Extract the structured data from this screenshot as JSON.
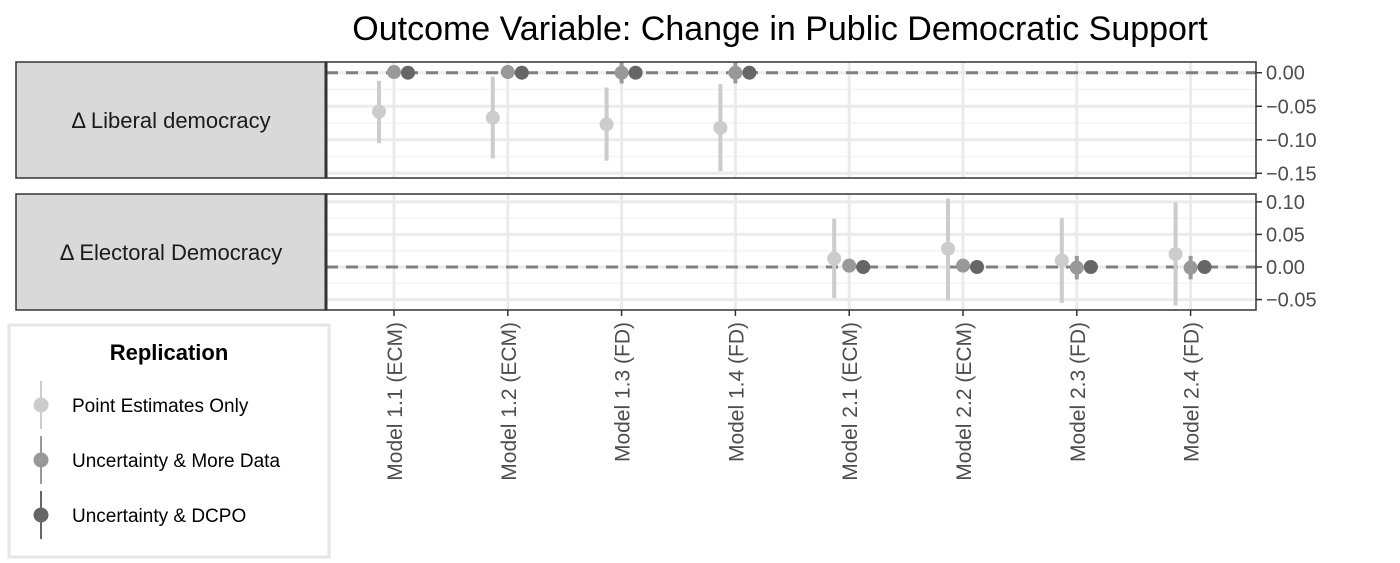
{
  "chart_data": {
    "type": "scatter",
    "title": "Outcome Variable: Change in Public Democratic Support",
    "categories": [
      "Model 1.1 (ECM)",
      "Model 1.2 (ECM)",
      "Model 1.3 (FD)",
      "Model 1.4 (FD)",
      "Model 2.1 (ECM)",
      "Model 2.2 (ECM)",
      "Model 2.3 (FD)",
      "Model 2.4 (FD)"
    ],
    "legend": {
      "title": "Replication",
      "placement": "bottom-left",
      "items": [
        {
          "name": "Point Estimates Only",
          "color": "#cccccc"
        },
        {
          "name": "Uncertainty & More Data",
          "color": "#999999"
        },
        {
          "name": "Uncertainty & DCPO",
          "color": "#666666"
        }
      ]
    },
    "colors": {
      "strip": "#d9d9d9",
      "grid_major": "#ebebeb",
      "grid_minor": "#f4f4f4",
      "zero_line": "#808080",
      "panel_border": "#333333"
    },
    "panels": [
      {
        "label": "Δ Liberal democracy",
        "ylim": [
          -0.157,
          0.016
        ],
        "yticks": [
          0.0,
          -0.05,
          -0.1,
          -0.15
        ],
        "ytick_labels": [
          "0.00",
          "−0.05",
          "−0.10",
          "−0.15"
        ],
        "zero_line": 0.0,
        "points": [
          {
            "model": 0,
            "series": 0,
            "y": -0.058,
            "lo": -0.105,
            "hi": -0.012
          },
          {
            "model": 0,
            "series": 1,
            "y": 0.001,
            "lo": -0.004,
            "hi": 0.006
          },
          {
            "model": 0,
            "series": 2,
            "y": 0.0,
            "lo": -0.002,
            "hi": 0.002
          },
          {
            "model": 1,
            "series": 0,
            "y": -0.067,
            "lo": -0.128,
            "hi": -0.006
          },
          {
            "model": 1,
            "series": 1,
            "y": 0.001,
            "lo": -0.004,
            "hi": 0.007
          },
          {
            "model": 1,
            "series": 2,
            "y": 0.0,
            "lo": -0.002,
            "hi": 0.002
          },
          {
            "model": 2,
            "series": 0,
            "y": -0.077,
            "lo": -0.131,
            "hi": -0.022
          },
          {
            "model": 2,
            "series": 1,
            "y": 0.0,
            "lo": -0.016,
            "hi": 0.015
          },
          {
            "model": 2,
            "series": 2,
            "y": 0.0,
            "lo": -0.002,
            "hi": 0.002
          },
          {
            "model": 3,
            "series": 0,
            "y": -0.082,
            "lo": -0.147,
            "hi": -0.017
          },
          {
            "model": 3,
            "series": 1,
            "y": 0.0,
            "lo": -0.016,
            "hi": 0.015
          },
          {
            "model": 3,
            "series": 2,
            "y": 0.0,
            "lo": -0.002,
            "hi": 0.002
          }
        ]
      },
      {
        "label": "Δ Electoral Democracy",
        "ylim": [
          -0.066,
          0.112
        ],
        "yticks": [
          0.1,
          0.05,
          0.0,
          -0.05
        ],
        "ytick_labels": [
          "0.10",
          "0.05",
          "0.00",
          "−0.05"
        ],
        "zero_line": 0.0,
        "points": [
          {
            "model": 4,
            "series": 0,
            "y": 0.013,
            "lo": -0.048,
            "hi": 0.074
          },
          {
            "model": 4,
            "series": 1,
            "y": 0.002,
            "lo": -0.005,
            "hi": 0.009
          },
          {
            "model": 4,
            "series": 2,
            "y": 0.0,
            "lo": -0.002,
            "hi": 0.002
          },
          {
            "model": 5,
            "series": 0,
            "y": 0.028,
            "lo": -0.051,
            "hi": 0.105
          },
          {
            "model": 5,
            "series": 1,
            "y": 0.002,
            "lo": -0.006,
            "hi": 0.01
          },
          {
            "model": 5,
            "series": 2,
            "y": 0.0,
            "lo": -0.002,
            "hi": 0.002
          },
          {
            "model": 6,
            "series": 0,
            "y": 0.01,
            "lo": -0.055,
            "hi": 0.075
          },
          {
            "model": 6,
            "series": 1,
            "y": -0.001,
            "lo": -0.019,
            "hi": 0.017
          },
          {
            "model": 6,
            "series": 2,
            "y": 0.0,
            "lo": -0.002,
            "hi": 0.002
          },
          {
            "model": 7,
            "series": 0,
            "y": 0.02,
            "lo": -0.059,
            "hi": 0.099
          },
          {
            "model": 7,
            "series": 1,
            "y": -0.001,
            "lo": -0.019,
            "hi": 0.017
          },
          {
            "model": 7,
            "series": 2,
            "y": 0.0,
            "lo": -0.002,
            "hi": 0.002
          }
        ]
      }
    ]
  }
}
